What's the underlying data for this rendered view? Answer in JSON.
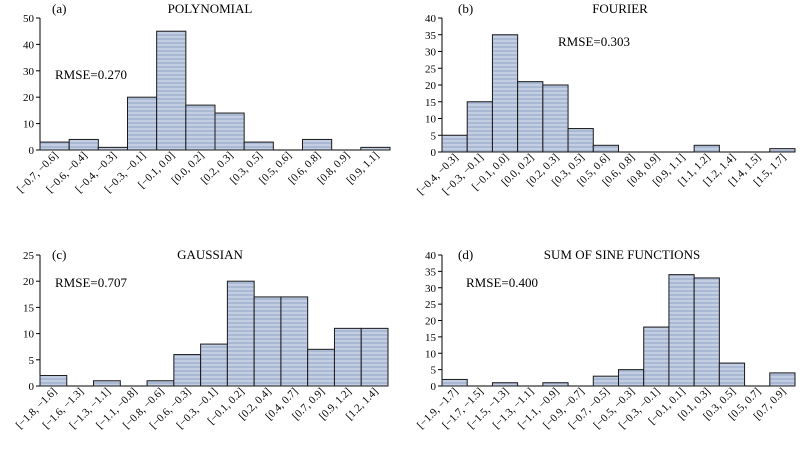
{
  "colors": {
    "bar_fill": "#a9b8d3",
    "bar_stripe": "#c3cee2",
    "bar_edge": "#1a1a1a"
  },
  "chart_data": [
    {
      "type": "bar",
      "panel_label": "(a)",
      "title": "POLYNOMIAL",
      "annotation": "RMSE=0.270",
      "categories": [
        "[−0.7, −0.6]",
        "[−0.6, −0.4]",
        "[−0.4, −0.3]",
        "[−0.3, −0.1]",
        "[−0.1, 0.0]",
        "[0.0, 0.2]",
        "[0.2, 0.3]",
        "[0.3, 0.5]",
        "[0.5, 0.6]",
        "[0.6, 0.8]",
        "[0.8, 0.9]",
        "[0.9, 1.1]"
      ],
      "values": [
        3,
        4,
        1,
        20,
        45,
        17,
        14,
        3,
        0,
        4,
        0,
        1
      ],
      "ylim": [
        0,
        50
      ],
      "yticks": [
        0,
        10,
        20,
        30,
        40,
        50
      ],
      "grid": false
    },
    {
      "type": "bar",
      "panel_label": "(b)",
      "title": "FOURIER",
      "annotation": "RMSE=0.303",
      "categories": [
        "[−0.4, −0.3]",
        "[−0.3, −0.1]",
        "[−0.1, 0.0]",
        "[0.0, 0.2]",
        "[0.2, 0.3]",
        "[0.3, 0.5]",
        "[0.5, 0.6]",
        "[0.6, 0.8]",
        "[0.8, 0.9]",
        "[0.9, 1.1]",
        "[1.1, 1.2]",
        "[1.2, 1.4]",
        "[1.4, 1.5]",
        "[1.5, 1.7]"
      ],
      "values": [
        5,
        15,
        35,
        21,
        20,
        7,
        2,
        0,
        0,
        0,
        2,
        0,
        0,
        1
      ],
      "ylim": [
        0,
        40
      ],
      "yticks": [
        0,
        5,
        10,
        15,
        20,
        25,
        30,
        35,
        40
      ],
      "grid": false
    },
    {
      "type": "bar",
      "panel_label": "(c)",
      "title": "GAUSSIAN",
      "annotation": "RMSE=0.707",
      "categories": [
        "[−1.8, −1.6]",
        "[−1.6, −1.3]",
        "[−1.3, −1.1]",
        "[−1.1, −0.8]",
        "[−0.8, −0.6]",
        "[−0.6, −0.3]",
        "[−0.3, −0.1]",
        "[−0.1, 0.2]",
        "[0.2, 0.4]",
        "[0.4, 0.7]",
        "[0.7, 0.9]",
        "[0.9, 1.2]",
        "[1.2, 1.4]"
      ],
      "values": [
        2,
        0,
        1,
        0,
        1,
        6,
        8,
        20,
        17,
        17,
        7,
        11,
        11
      ],
      "ylim": [
        0,
        25
      ],
      "yticks": [
        0,
        5,
        10,
        15,
        20,
        25
      ],
      "grid": false
    },
    {
      "type": "bar",
      "panel_label": "(d)",
      "title": "SUM OF SINE FUNCTIONS",
      "annotation": "RMSE=0.400",
      "categories": [
        "[−1.9, −1.7]",
        "[−1.7, −1.5]",
        "[−1.5, −1.3]",
        "[−1.3, −1.1]",
        "[−1.1, −0.9]",
        "[−0.9, −0.7]",
        "[−0.7, −0.5]",
        "[−0.5, −0.3]",
        "[−0.3, −0.1]",
        "[−0.1, 0.1]",
        "[0.1, 0.3]",
        "[0.3, 0.5]",
        "[0.5, 0.7]",
        "[0.7, 0.9]"
      ],
      "values": [
        2,
        0,
        1,
        0,
        1,
        0,
        3,
        5,
        18,
        34,
        33,
        7,
        0,
        4
      ],
      "ylim": [
        0,
        40
      ],
      "yticks": [
        0,
        5,
        10,
        15,
        20,
        25,
        30,
        35,
        40
      ],
      "grid": false
    }
  ]
}
